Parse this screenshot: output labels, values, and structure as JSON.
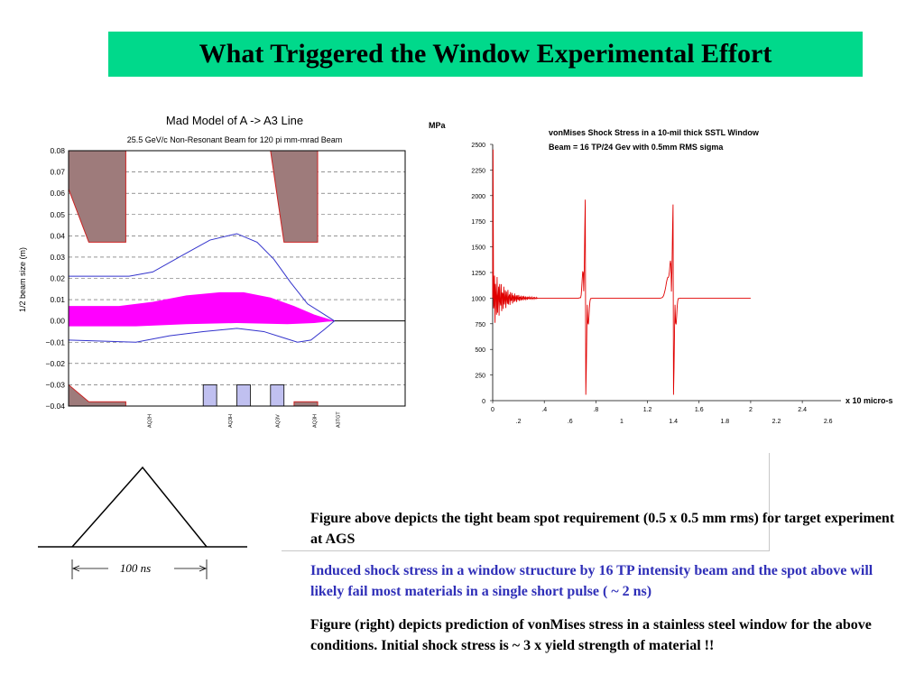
{
  "slide": {
    "title": "What Triggered the Window Experimental Effort",
    "paragraphs": [
      "Figure above depicts the tight beam spot requirement (0.5 x 0.5 mm rms) for target experiment at AGS",
      "Induced shock stress in a window structure by 16 TP intensity beam and the spot above will likely fail most materials in a single short pulse ( ~ 2 ns)",
      "Figure (right) depicts prediction of vonMises stress in a stainless steel window for the above conditions. Initial shock stress is ~ 3 x yield strength of material !!"
    ],
    "pulse": {
      "label": "100 ns"
    },
    "colors": {
      "title_bg": "#00d98b",
      "emphasis_text": "#2f2fb8"
    }
  },
  "chart_data": [
    {
      "type": "line",
      "title": "Mad Model of A -> A3 Line",
      "subtitle": "25.5 GeV/c Non-Resonant Beam for 120 pi mm-mrad Beam",
      "xlabel": "",
      "ylabel": "1/2 beam size (m)",
      "ylim": [
        -0.04,
        0.08
      ],
      "yticks": [
        "0.08",
        "0.07",
        "0.06",
        "0.05",
        "0.04",
        "0.03",
        "0.02",
        "0.01",
        "0.00",
        "−0.01",
        "−0.02",
        "−0.03",
        "−0.04"
      ],
      "grid": true,
      "x_markers": [
        "AQ2H",
        "AQ3H",
        "AQ3V",
        "AQ3H",
        "A3TGT"
      ],
      "series": [
        {
          "kind": "envelope-upper",
          "color": "#3333cc",
          "points": [
            [
              0,
              0.021
            ],
            [
              0.18,
              0.021
            ],
            [
              0.25,
              0.023
            ],
            [
              0.34,
              0.031
            ],
            [
              0.42,
              0.038
            ],
            [
              0.5,
              0.041
            ],
            [
              0.56,
              0.037
            ],
            [
              0.61,
              0.029
            ],
            [
              0.66,
              0.018
            ],
            [
              0.71,
              0.008
            ],
            [
              0.76,
              0.003
            ],
            [
              0.79,
              0.0
            ]
          ]
        },
        {
          "kind": "envelope-lower",
          "color": "#3333cc",
          "points": [
            [
              0,
              -0.009
            ],
            [
              0.2,
              -0.01
            ],
            [
              0.3,
              -0.007
            ],
            [
              0.4,
              -0.005
            ],
            [
              0.5,
              -0.0035
            ],
            [
              0.58,
              -0.005
            ],
            [
              0.64,
              -0.008
            ],
            [
              0.68,
              -0.01
            ],
            [
              0.72,
              -0.009
            ],
            [
              0.76,
              -0.004
            ],
            [
              0.79,
              0.0
            ]
          ]
        },
        {
          "kind": "beam-fill",
          "color": "#ff00ff",
          "upper": [
            [
              0,
              0.007
            ],
            [
              0.15,
              0.007
            ],
            [
              0.25,
              0.009
            ],
            [
              0.35,
              0.012
            ],
            [
              0.45,
              0.0135
            ],
            [
              0.52,
              0.0135
            ],
            [
              0.6,
              0.011
            ],
            [
              0.67,
              0.007
            ],
            [
              0.73,
              0.003
            ],
            [
              0.79,
              0.0
            ]
          ],
          "lower": [
            [
              0,
              -0.0025
            ],
            [
              0.2,
              -0.0025
            ],
            [
              0.35,
              -0.0015
            ],
            [
              0.5,
              -0.001
            ],
            [
              0.65,
              -0.0015
            ],
            [
              0.73,
              -0.001
            ],
            [
              0.79,
              0.0
            ]
          ]
        }
      ],
      "apertures_top": [
        {
          "color": "#9e7b7b",
          "points": [
            [
              0,
              0.08
            ],
            [
              0.06,
              0.08
            ],
            [
              0.17,
              0.08
            ],
            [
              0.17,
              0.037
            ],
            [
              0.06,
              0.037
            ],
            [
              0.0,
              0.062
            ]
          ]
        },
        {
          "color": "#9e7b7b",
          "points": [
            [
              0.6,
              0.08
            ],
            [
              0.74,
              0.08
            ],
            [
              0.74,
              0.037
            ],
            [
              0.64,
              0.037
            ]
          ]
        }
      ],
      "apertures_bottom": [
        {
          "color": "#9e7b7b",
          "points": [
            [
              0,
              -0.04
            ],
            [
              0,
              -0.03
            ],
            [
              0.06,
              -0.038
            ],
            [
              0.17,
              -0.038
            ],
            [
              0.17,
              -0.04
            ]
          ]
        },
        {
          "color": "#9e7b7b",
          "points": [
            [
              0.67,
              -0.04
            ],
            [
              0.67,
              -0.038
            ],
            [
              0.74,
              -0.038
            ],
            [
              0.74,
              -0.04
            ]
          ]
        }
      ],
      "magnets": [
        {
          "x": [
            0.4,
            0.44
          ],
          "y": [
            -0.04,
            -0.03
          ],
          "color": "#c0c0f0"
        },
        {
          "x": [
            0.5,
            0.54
          ],
          "y": [
            -0.04,
            -0.03
          ],
          "color": "#c0c0f0"
        },
        {
          "x": [
            0.6,
            0.64
          ],
          "y": [
            -0.04,
            -0.03
          ],
          "color": "#c0c0f0"
        }
      ]
    },
    {
      "type": "line",
      "title": "vonMises Shock Stress in a 10-mil thick SSTL Window",
      "subtitle": "Beam = 16 TP/24 Gev with 0.5mm RMS sigma",
      "ylabel": "MPa",
      "xlabel": "x 10 micro-s",
      "ylim": [
        0,
        2500
      ],
      "xlim": [
        0,
        2.7
      ],
      "yticks": [
        "2500",
        "2250",
        "2000",
        "1750",
        "1500",
        "1250",
        "1000",
        "750",
        "500",
        "250",
        "0"
      ],
      "xticks_top": [
        "0",
        ".4",
        ".8",
        "1.2",
        "1.6",
        "2",
        "2.4"
      ],
      "xticks_bottom": [
        ".2",
        ".6",
        "1",
        "1.4",
        "1.8",
        "2.2",
        "2.6"
      ],
      "series": [
        {
          "name": "",
          "color": "#e00000",
          "features": {
            "baseline": 1000,
            "initial_spike_at": 0.0,
            "initial_spike_max": 2450,
            "burst1_at": 0.72,
            "burst1_max": 2000,
            "burst1_min": 20,
            "burst2_at": 1.4,
            "burst2_max": 1950,
            "burst2_min": 20,
            "end_x": 2.0
          }
        }
      ]
    }
  ]
}
